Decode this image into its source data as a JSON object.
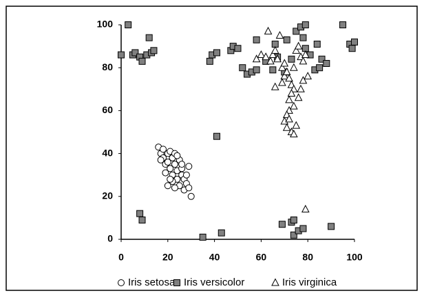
{
  "chart_data": {
    "type": "scatter",
    "xlim": [
      0,
      100
    ],
    "ylim": [
      0,
      100
    ],
    "xticks": [
      0,
      20,
      40,
      60,
      80,
      100
    ],
    "yticks": [
      0,
      20,
      40,
      60,
      80,
      100
    ],
    "grid": false,
    "legend": "bottom",
    "series": [
      {
        "name": "Iris setosa",
        "color": "#ffffff",
        "marker": "circle",
        "x": [
          16,
          17,
          18,
          18,
          19,
          20,
          20,
          21,
          21,
          22,
          22,
          23,
          23,
          24,
          24,
          25,
          25,
          26,
          26,
          27,
          27,
          28,
          28,
          29,
          29,
          30,
          20,
          22,
          19,
          17,
          24,
          26,
          21,
          23
        ],
        "values": [
          43,
          40,
          38,
          42,
          35,
          40,
          36,
          41,
          33,
          38,
          30,
          35,
          40,
          32,
          28,
          37,
          25,
          33,
          30,
          28,
          23,
          26,
          30,
          24,
          34,
          20,
          25,
          27,
          31,
          37,
          39,
          35,
          28,
          24
        ]
      },
      {
        "name": "Iris versicolor",
        "color": "#808080",
        "marker": "square",
        "x": [
          0,
          3,
          5,
          6,
          8,
          9,
          11,
          12,
          13,
          14,
          8,
          9,
          35,
          43,
          38,
          39,
          41,
          41,
          47,
          48,
          50,
          52,
          54,
          56,
          58,
          58,
          62,
          65,
          66,
          67,
          70,
          71,
          73,
          75,
          77,
          78,
          79,
          79,
          81,
          83,
          84,
          85,
          86,
          88,
          95,
          98,
          99,
          100,
          69,
          73,
          74,
          74,
          76,
          78,
          90
        ],
        "values": [
          86,
          100,
          86,
          87,
          85,
          83,
          86,
          94,
          87,
          88,
          12,
          9,
          1,
          3,
          83,
          86,
          87,
          48,
          88,
          90,
          89,
          80,
          77,
          78,
          79,
          93,
          83,
          79,
          91,
          85,
          78,
          93,
          84,
          97,
          99,
          94,
          100,
          89,
          86,
          79,
          91,
          80,
          84,
          82,
          100,
          91,
          89,
          92,
          7,
          8,
          9,
          2,
          4,
          5,
          6
        ]
      },
      {
        "name": "Iris virginica",
        "color": "#ffffff",
        "marker": "triangle",
        "x": [
          63,
          58,
          60,
          62,
          64,
          65,
          66,
          67,
          68,
          69,
          70,
          70,
          71,
          72,
          73,
          74,
          75,
          76,
          77,
          78,
          74,
          72,
          71,
          70,
          71,
          73,
          74,
          75,
          72,
          73,
          76,
          77,
          78,
          80,
          74,
          69,
          66,
          79,
          79,
          72
        ],
        "values": [
          97,
          84,
          86,
          85,
          83,
          86,
          88,
          84,
          95,
          80,
          82,
          76,
          78,
          75,
          72,
          70,
          88,
          90,
          85,
          83,
          62,
          60,
          58,
          55,
          52,
          50,
          49,
          53,
          65,
          68,
          66,
          70,
          74,
          76,
          80,
          73,
          71,
          86,
          14,
          56
        ]
      }
    ]
  }
}
